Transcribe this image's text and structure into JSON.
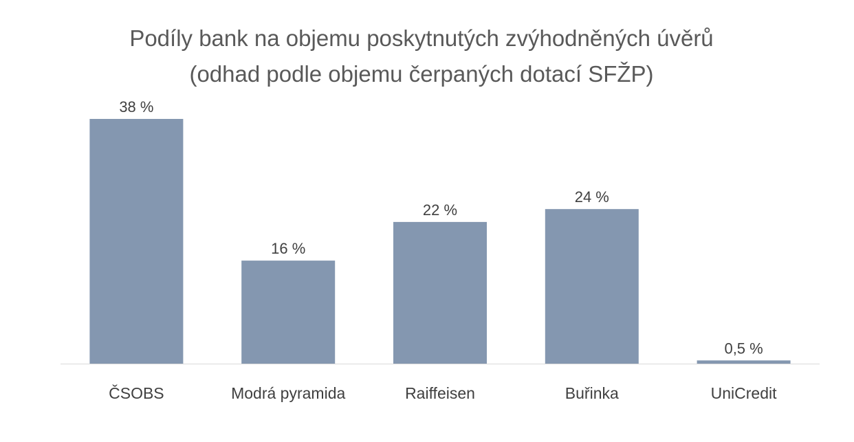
{
  "chart_data": {
    "type": "bar",
    "title_lines": [
      "Podíly bank na objemu poskytnutých zvýhodněných úvěrů",
      "(odhad podle objemu čerpaných dotací SFŽP)"
    ],
    "categories": [
      "ČSOBS",
      "Modrá pyramida",
      "Raiffeisen",
      "Buřinka",
      "UniCredit"
    ],
    "values": [
      38,
      16,
      22,
      24,
      0.5
    ],
    "data_labels": [
      "38 %",
      "16 %",
      "22 %",
      "24 %",
      "0,5 %"
    ],
    "ylim": [
      0,
      40
    ],
    "grid": false,
    "legend": "none",
    "bar_color": "#8497B0",
    "axis_color": "#D9D9D9"
  }
}
